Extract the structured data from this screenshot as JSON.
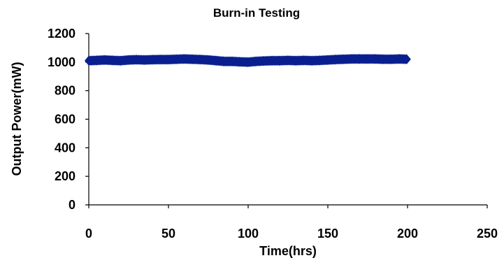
{
  "chart_data": {
    "type": "scatter",
    "title": "Burn-in Testing",
    "xlabel": "Time(hrs)",
    "ylabel": "Output Power(mW)",
    "xlim": [
      0,
      250
    ],
    "ylim": [
      0,
      1200
    ],
    "xticks": [
      0,
      50,
      100,
      150,
      200,
      250
    ],
    "yticks": [
      0,
      200,
      400,
      600,
      800,
      1000,
      1200
    ],
    "grid": false,
    "legend": "none",
    "marker_color": "#0a1f8f",
    "series": [
      {
        "x": [
          0,
          5,
          10,
          15,
          20,
          25,
          30,
          35,
          40,
          45,
          50,
          55,
          60,
          65,
          70,
          75,
          80,
          85,
          90,
          95,
          100,
          105,
          110,
          115,
          120,
          125,
          130,
          135,
          140,
          145,
          150,
          155,
          160,
          165,
          170,
          175,
          180,
          185,
          190,
          195,
          200
        ],
        "y": [
          1010,
          1012,
          1015,
          1012,
          1010,
          1015,
          1017,
          1015,
          1017,
          1018,
          1018,
          1020,
          1022,
          1020,
          1018,
          1015,
          1010,
          1005,
          1005,
          1002,
          1000,
          1005,
          1008,
          1010,
          1010,
          1012,
          1010,
          1012,
          1010,
          1012,
          1015,
          1018,
          1020,
          1022,
          1022,
          1022,
          1022,
          1020,
          1020,
          1022,
          1020
        ]
      }
    ]
  }
}
